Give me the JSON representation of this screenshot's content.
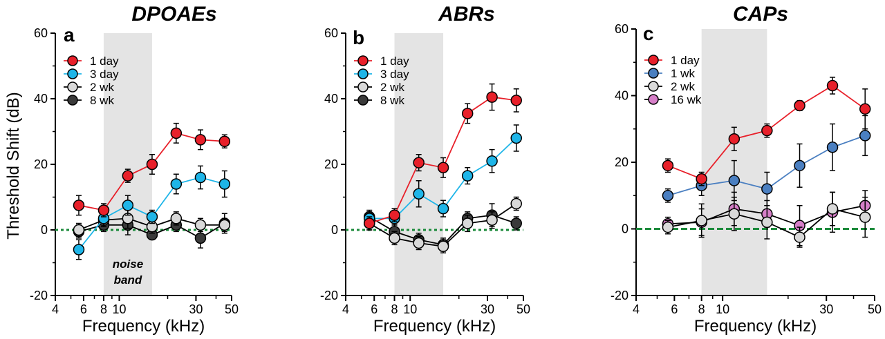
{
  "figure": {
    "ylabel": "Threshold Shift (dB)",
    "xlabel": "Frequency (kHz)"
  },
  "chart_data": [
    {
      "type": "line",
      "title": "DPOAEs",
      "panel_letter": "a",
      "xlabel": "Frequency (kHz)",
      "ylabel": "Threshold Shift (dB)",
      "x_scale": "log",
      "xlim": [
        4,
        50
      ],
      "ylim": [
        -20,
        60
      ],
      "x_ticks": [
        4,
        6,
        8,
        10,
        30,
        50
      ],
      "x_tick_labels": [
        "4",
        "6",
        "8",
        "10",
        "30",
        "50"
      ],
      "y_ticks": [
        -20,
        0,
        20,
        40,
        60
      ],
      "y_tick_labels": [
        "-20",
        "0",
        "20",
        "40",
        "60"
      ],
      "reference_line_y": 0,
      "shaded_band": [
        8,
        16
      ],
      "annotation": [
        "noise",
        "band"
      ],
      "legend_position": "top-left",
      "x": [
        5.6,
        8,
        11.3,
        16,
        22.6,
        32,
        45.2
      ],
      "series": [
        {
          "name": "1 day",
          "color": "#e8202a",
          "values": [
            7.5,
            6,
            16.5,
            20,
            29.5,
            27.5,
            27
          ],
          "errors": [
            3,
            2,
            2,
            3,
            3,
            3,
            2
          ]
        },
        {
          "name": "3 day",
          "color": "#1eb5e8",
          "values": [
            -6,
            3.5,
            7.5,
            4,
            14,
            16,
            14
          ],
          "errors": [
            3,
            2,
            3,
            2,
            3,
            3.5,
            4
          ]
        },
        {
          "name": "2 wk",
          "color": "#d9d9d9",
          "values": [
            0,
            3,
            3.5,
            1,
            3.5,
            1.5,
            1.5
          ],
          "errors": [
            2,
            2,
            3,
            2,
            2,
            2,
            2
          ]
        },
        {
          "name": "8 wk",
          "color": "#3a3a3a",
          "values": [
            -0.5,
            1.5,
            1.5,
            -1.5,
            1.5,
            -2.5,
            2
          ],
          "errors": [
            2,
            2,
            3,
            1,
            2,
            3,
            3
          ]
        }
      ]
    },
    {
      "type": "line",
      "title": "ABRs",
      "panel_letter": "b",
      "xlabel": "Frequency (kHz)",
      "ylabel": "",
      "x_scale": "log",
      "xlim": [
        4,
        50
      ],
      "ylim": [
        -20,
        60
      ],
      "x_ticks": [
        4,
        6,
        8,
        10,
        30,
        50
      ],
      "x_tick_labels": [
        "4",
        "6",
        "8",
        "10",
        "30",
        "50"
      ],
      "y_ticks": [
        -20,
        0,
        20,
        40,
        60
      ],
      "y_tick_labels": [
        "-20",
        "0",
        "20",
        "40",
        "60"
      ],
      "reference_line_y": 0,
      "shaded_band": [
        8,
        16
      ],
      "legend_position": "top-left",
      "x": [
        5.6,
        8,
        11.3,
        16,
        22.6,
        32,
        45.2
      ],
      "series": [
        {
          "name": "1 day",
          "color": "#e8202a",
          "values": [
            2,
            4.5,
            20.5,
            19,
            35.5,
            40.5,
            39.5
          ],
          "errors": [
            2,
            2,
            2.5,
            3,
            3,
            4,
            3.5
          ]
        },
        {
          "name": "3 day",
          "color": "#1eb5e8",
          "values": [
            3.5,
            3.5,
            11,
            6.5,
            16.5,
            21,
            28
          ],
          "errors": [
            2,
            2,
            4,
            2.5,
            2.5,
            3.5,
            4
          ]
        },
        {
          "name": "2 wk",
          "color": "#d9d9d9",
          "values": [
            2,
            -2.5,
            -4,
            -5,
            2,
            3,
            8
          ],
          "errors": [
            2,
            2,
            2,
            2,
            2.5,
            2.5,
            2
          ]
        },
        {
          "name": "8 wk",
          "color": "#3a3a3a",
          "values": [
            4,
            -0.5,
            -3,
            -4.5,
            3.5,
            4.5,
            2
          ],
          "errors": [
            2,
            2,
            2,
            2,
            2,
            3.5,
            2
          ]
        }
      ]
    },
    {
      "type": "line",
      "title": "CAPs",
      "panel_letter": "c",
      "xlabel": "Frequency (kHz)",
      "ylabel": "",
      "x_scale": "log",
      "xlim": [
        4,
        50
      ],
      "ylim": [
        -20,
        60
      ],
      "x_ticks": [
        4,
        6,
        8,
        10,
        30,
        50
      ],
      "x_tick_labels": [
        "4",
        "6",
        "8",
        "10",
        "30",
        "50"
      ],
      "y_ticks": [
        -20,
        0,
        20,
        40,
        60
      ],
      "y_tick_labels": [
        "-20",
        "0",
        "20",
        "40",
        "60"
      ],
      "reference_line_y": 0,
      "shaded_band": [
        8,
        16
      ],
      "legend_position": "top-left",
      "x": [
        5.6,
        8,
        11.3,
        16,
        22.6,
        32,
        45.2
      ],
      "series": [
        {
          "name": "1 day",
          "color": "#e8202a",
          "values": [
            19,
            15,
            27,
            29.5,
            37,
            43,
            36
          ],
          "errors": [
            2,
            2,
            3.5,
            2,
            1.5,
            2.5,
            6
          ]
        },
        {
          "name": "1 wk",
          "color": "#4a7fc1",
          "values": [
            10,
            13,
            14.5,
            12,
            19,
            24.5,
            28
          ],
          "errors": [
            2,
            3,
            6,
            5,
            6.5,
            7,
            6
          ]
        },
        {
          "name": "2 wk",
          "color": "#d9d9d9",
          "values": [
            0.5,
            2.5,
            4.5,
            2,
            -2.5,
            6,
            3.5
          ],
          "errors": [
            2,
            5,
            5,
            5,
            3,
            5,
            6
          ]
        },
        {
          "name": "16 wk",
          "color": "#d67fc8",
          "values": [
            1.5,
            2,
            6,
            4.5,
            1,
            5,
            7
          ],
          "errors": [
            2,
            4,
            5,
            4,
            6,
            6,
            4.5
          ]
        }
      ]
    }
  ]
}
